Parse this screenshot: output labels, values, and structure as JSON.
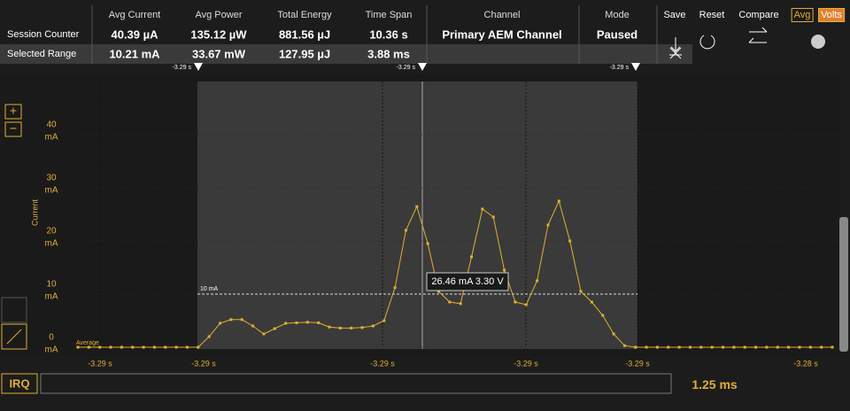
{
  "header": {
    "columns": [
      "Avg Current",
      "Avg Power",
      "Total Energy",
      "Time Span",
      "Channel",
      "Mode"
    ],
    "rows": [
      {
        "label": "Session Counter",
        "values": [
          "40.39 µA",
          "135.12 µW",
          "881.56 µJ",
          "10.36 s",
          "Primary AEM Channel",
          "Paused"
        ]
      },
      {
        "label": "Selected Range",
        "values": [
          "10.21 mA",
          "33.67 mW",
          "127.95 µJ",
          "3.88 ms"
        ]
      }
    ],
    "buttons": [
      "Save",
      "Reset",
      "Compare"
    ],
    "toggles": [
      "Avg",
      "Volts"
    ]
  },
  "markers": [
    "-3.29 s",
    "-3.29 s",
    "-3.29 s"
  ],
  "chart_data": {
    "type": "line",
    "y_label": "Current",
    "y_unit": "mA",
    "ylim": [
      0,
      50
    ],
    "yticks": [
      0,
      10,
      20,
      30,
      40
    ],
    "xtick_labels": [
      "-3.29 s",
      "-3.29 s",
      "-3.29 s",
      "-3.29 s",
      "-3.29 s",
      "-3.28 s"
    ],
    "series": [
      {
        "name": "Current",
        "color": "#e0b030",
        "values": [
          0,
          0,
          0,
          0,
          0,
          0,
          0,
          0,
          0,
          0,
          0,
          0,
          2,
          4.5,
          5.2,
          5.2,
          4,
          2.5,
          3.5,
          4.5,
          4.6,
          4.7,
          4.6,
          3.8,
          3.6,
          3.6,
          3.7,
          4,
          5,
          11.2,
          22,
          26.46,
          19.5,
          10.5,
          8.5,
          8.2,
          17,
          26,
          24.5,
          14.5,
          8.5,
          8,
          12.5,
          23,
          27.5,
          20,
          10.5,
          8.5,
          6,
          2.5,
          0.3,
          0,
          0,
          0,
          0,
          0,
          0,
          0,
          0,
          0,
          0,
          0,
          0,
          0,
          0,
          0,
          0,
          0,
          0,
          0
        ]
      }
    ],
    "threshold": {
      "value": 10,
      "label": "10 mA"
    },
    "average_label": "Average",
    "tooltip": "26.46 mA 3.30 V"
  },
  "footer": {
    "irq": "IRQ",
    "zoom": "1.25 ms"
  }
}
